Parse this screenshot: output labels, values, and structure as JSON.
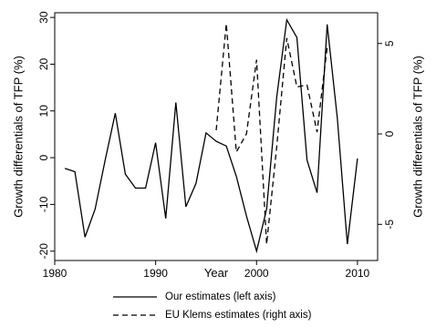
{
  "chart_data": {
    "type": "line",
    "xlabel": "Year",
    "ylabel_left": "Growth differentials of TFP (%)",
    "ylabel_right": "Growth differentials of TFP (%)",
    "xlim": [
      1980,
      2012
    ],
    "ylim_left": [
      -22,
      31
    ],
    "ylim_right": [
      -7,
      6.7
    ],
    "x_ticks": [
      1980,
      1990,
      2000,
      2010
    ],
    "y_ticks_left": [
      -20,
      -10,
      0,
      10,
      20,
      30
    ],
    "y_ticks_right": [
      -5,
      0,
      5
    ],
    "grid": false,
    "legend_position": "bottom",
    "series": [
      {
        "name": "Our estimates (left axis)",
        "axis": "left",
        "style": "solid",
        "color": "#000000",
        "x": [
          1981,
          1982,
          1983,
          1984,
          1985,
          1986,
          1987,
          1988,
          1989,
          1990,
          1991,
          1992,
          1993,
          1994,
          1995,
          1996,
          1997,
          1998,
          1999,
          2000,
          2001,
          2002,
          2003,
          2004,
          2005,
          2006,
          2007,
          2008,
          2009,
          2010
        ],
        "values": [
          -2.3,
          -3.0,
          -17.0,
          -11.0,
          -0.5,
          9.5,
          -3.5,
          -6.5,
          -6.5,
          3.2,
          -13.0,
          11.8,
          -10.5,
          -5.5,
          5.3,
          3.5,
          2.5,
          -4.0,
          -12.5,
          -20.0,
          -11.0,
          13.0,
          29.5,
          25.7,
          -0.5,
          -7.5,
          28.5,
          8.5,
          -18.5,
          -0.2
        ]
      },
      {
        "name": "EU Klems estimates (right axis)",
        "axis": "right",
        "style": "dashed",
        "color": "#000000",
        "x": [
          1996,
          1997,
          1998,
          1999,
          2000,
          2001,
          2002,
          2003,
          2004,
          2005,
          2006,
          2007
        ],
        "values": [
          0.2,
          6.1,
          -1.0,
          0.0,
          4.1,
          -6.1,
          -0.7,
          5.3,
          2.6,
          2.7,
          0.1,
          4.8
        ]
      }
    ]
  }
}
